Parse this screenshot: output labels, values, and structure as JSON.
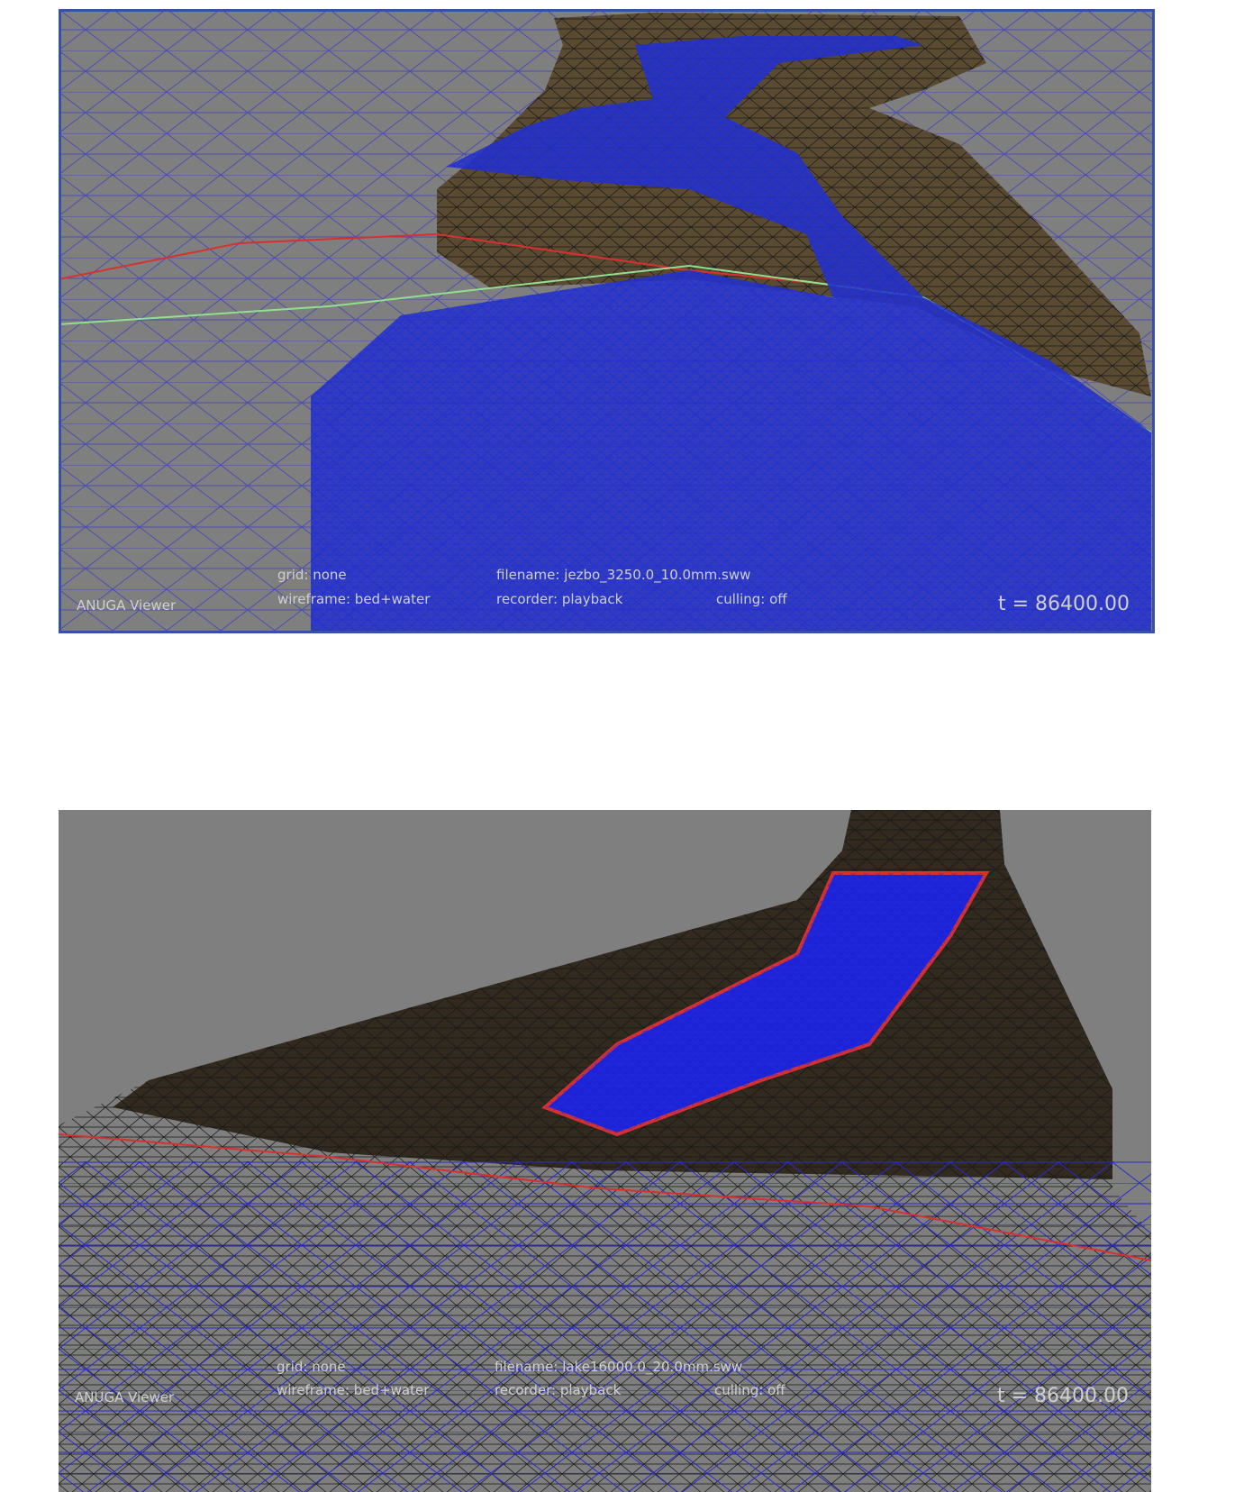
{
  "panels": [
    {
      "grid": "grid: none",
      "filename": "filename: jezbo_3250.0_10.0mm.sww",
      "wireframe": "wireframe: bed+water",
      "recorder": "recorder: playback",
      "culling": "culling: off",
      "title": "ANUGA Viewer",
      "time": "t = 86400.00"
    },
    {
      "grid": "grid: none",
      "filename": "filename: lake16000.0_20.0mm.sww",
      "wireframe": "wireframe: bed+water",
      "recorder": "recorder: playback",
      "culling": "culling: off",
      "title": "ANUGA Viewer",
      "time": "t = 86400.00"
    }
  ]
}
